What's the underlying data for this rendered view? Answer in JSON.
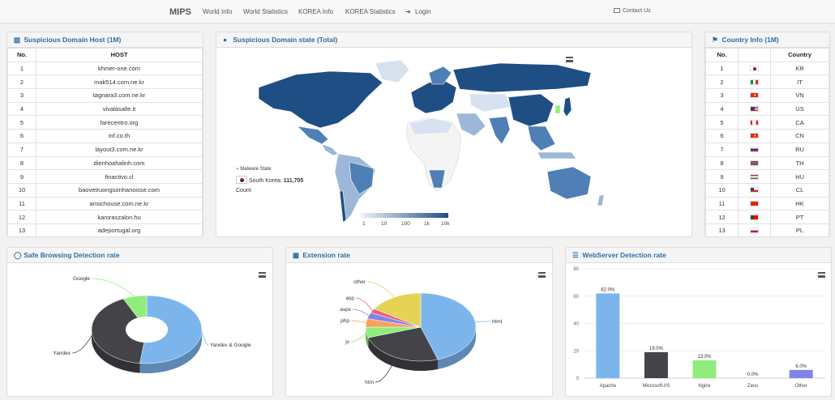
{
  "nav": {
    "brand": "MIPS",
    "items": [
      "World Info",
      "World Statistics",
      "KOREA Info",
      "KOREA Statistics"
    ],
    "login": "Login",
    "contact": "Contact Us"
  },
  "host_panel": {
    "title": "Suspicious Domain Host (1M)",
    "col_no": "No.",
    "col_host": "HOST",
    "rows": [
      {
        "no": "1",
        "host": "khmer-one.com"
      },
      {
        "no": "2",
        "host": "mak514.com.ne.kr"
      },
      {
        "no": "3",
        "host": "tagnara3.com.ne.kr"
      },
      {
        "no": "4",
        "host": "vivalasalle.it"
      },
      {
        "no": "5",
        "host": "farecentro.org"
      },
      {
        "no": "6",
        "host": "inf.co.th"
      },
      {
        "no": "7",
        "host": "layout3.com.ne.kr"
      },
      {
        "no": "8",
        "host": "dienhoahalinh.com"
      },
      {
        "no": "9",
        "host": "finactivo.cl"
      },
      {
        "no": "10",
        "host": "baovetruongsonhanoisse.com"
      },
      {
        "no": "11",
        "host": "ansichouse.com.ne.kr"
      },
      {
        "no": "12",
        "host": "karoraszalon.hu"
      },
      {
        "no": "13",
        "host": "adeportugal.org"
      }
    ]
  },
  "map_panel": {
    "title": "Suspicious Domain state (Total)",
    "legend_title": "Malware State",
    "tooltip_country": "South Korea:",
    "tooltip_value": "111,705",
    "tooltip_label": "Count",
    "scale_labels": [
      "1",
      "10",
      "100",
      "1k",
      "10k"
    ],
    "colors": {
      "dark": "#1f4e84",
      "mid": "#4f7fb5",
      "light": "#9db7d8",
      "pale": "#d6e2f0",
      "none": "#f4f4f4"
    }
  },
  "country_panel": {
    "title": "Country Info (1M)",
    "col_no": "No.",
    "col_country": "Country",
    "rows": [
      {
        "no": "1",
        "code": "KR",
        "flag": "kr"
      },
      {
        "no": "2",
        "code": "IT",
        "flag": "it"
      },
      {
        "no": "3",
        "code": "VN",
        "flag": "vn"
      },
      {
        "no": "4",
        "code": "US",
        "flag": "us"
      },
      {
        "no": "5",
        "code": "CA",
        "flag": "ca"
      },
      {
        "no": "6",
        "code": "CN",
        "flag": "cn"
      },
      {
        "no": "7",
        "code": "RU",
        "flag": "ru"
      },
      {
        "no": "8",
        "code": "TH",
        "flag": "th"
      },
      {
        "no": "9",
        "code": "HU",
        "flag": "hu"
      },
      {
        "no": "10",
        "code": "CL",
        "flag": "cl"
      },
      {
        "no": "11",
        "code": "HK",
        "flag": "hk"
      },
      {
        "no": "12",
        "code": "PT",
        "flag": "pt"
      },
      {
        "no": "13",
        "code": "PL",
        "flag": "pl"
      }
    ]
  },
  "safe_panel": {
    "title": "Safe Browsing Detection rate"
  },
  "ext_panel": {
    "title": "Extension rate"
  },
  "web_panel": {
    "title": "WebServer Detection rate"
  },
  "chart_data": [
    {
      "type": "pie",
      "variant": "3d-donut",
      "labels": [
        "Yandex & Google",
        "Yandex",
        "Google"
      ],
      "values": [
        52,
        41,
        7
      ],
      "colors": [
        "#7cb5ec",
        "#434348",
        "#90ed7d"
      ]
    },
    {
      "type": "pie",
      "variant": "3d",
      "labels": [
        "html",
        "htm",
        "js",
        "php",
        "aspx",
        "asp",
        "other"
      ],
      "values": [
        45,
        25,
        5,
        4,
        3,
        2,
        16
      ],
      "colors": [
        "#7cb5ec",
        "#434348",
        "#90ed7d",
        "#f7a35c",
        "#8085e9",
        "#f15c80",
        "#e4d354"
      ]
    },
    {
      "type": "bar",
      "categories": [
        "Apache",
        "Microsoft-IIS",
        "Nginx",
        "Zeus",
        "Other"
      ],
      "values": [
        62.0,
        19.0,
        13.0,
        0.0,
        6.0
      ],
      "data_labels": [
        "62.0%",
        "19.0%",
        "13.0%",
        "0.0%",
        "6.0%"
      ],
      "colors": [
        "#7cb5ec",
        "#434348",
        "#90ed7d",
        "#f7a35c",
        "#8085e9"
      ],
      "ylim": [
        0,
        80
      ],
      "yticks": [
        "0",
        "20",
        "40",
        "60",
        "80"
      ]
    }
  ]
}
